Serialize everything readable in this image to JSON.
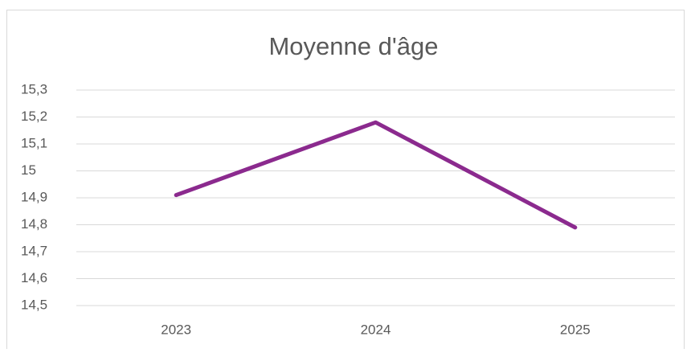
{
  "chart_data": {
    "type": "line",
    "title": "Moyenne d'âge",
    "categories": [
      "2023",
      "2024",
      "2025"
    ],
    "series": [
      {
        "name": "Moyenne d'âge",
        "color": "#8b2a8e",
        "values": [
          14.91,
          15.18,
          14.79
        ]
      }
    ],
    "ylim": [
      14.5,
      15.3
    ],
    "yticks": [
      {
        "value": 14.5,
        "label": "14,5"
      },
      {
        "value": 14.6,
        "label": "14,6"
      },
      {
        "value": 14.7,
        "label": "14,7"
      },
      {
        "value": 14.8,
        "label": "14,8"
      },
      {
        "value": 14.9,
        "label": "14,9"
      },
      15,
      {
        "value": 15.1,
        "label": "15,1"
      },
      {
        "value": 15.2,
        "label": "15,2"
      },
      {
        "value": 15.3,
        "label": "15,3"
      }
    ],
    "grid": true,
    "legend": false
  }
}
